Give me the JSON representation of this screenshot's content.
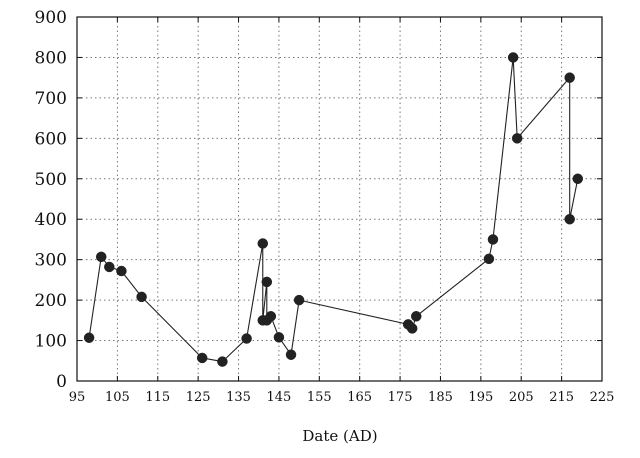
{
  "chart_data": {
    "type": "line",
    "title": "",
    "xlabel": "Date (AD)",
    "ylabel": "",
    "xlim": [
      95,
      225
    ],
    "ylim": [
      0,
      900
    ],
    "x_ticks": [
      95,
      105,
      115,
      125,
      135,
      145,
      155,
      165,
      175,
      185,
      195,
      205,
      215,
      225
    ],
    "y_ticks": [
      0,
      100,
      200,
      300,
      400,
      500,
      600,
      700,
      800,
      900
    ],
    "grid": true,
    "grid_style": "dotted",
    "legend": "none",
    "colors": {
      "line": "#222222",
      "marker": "#222222",
      "grid": "#777777",
      "axis": "#111111"
    },
    "series": [
      {
        "points": [
          {
            "x": 98,
            "y": 107
          },
          {
            "x": 101,
            "y": 307
          },
          {
            "x": 103,
            "y": 282
          },
          {
            "x": 106,
            "y": 272
          },
          {
            "x": 111,
            "y": 208
          },
          {
            "x": 126,
            "y": 57
          },
          {
            "x": 131,
            "y": 48
          },
          {
            "x": 137,
            "y": 105
          },
          {
            "x": 141,
            "y": 340
          },
          {
            "x": 141,
            "y": 150
          },
          {
            "x": 142,
            "y": 245
          },
          {
            "x": 142,
            "y": 150
          },
          {
            "x": 143,
            "y": 160
          },
          {
            "x": 145,
            "y": 108
          },
          {
            "x": 148,
            "y": 65
          },
          {
            "x": 150,
            "y": 200
          },
          {
            "x": 177,
            "y": 140
          },
          {
            "x": 178,
            "y": 130
          },
          {
            "x": 179,
            "y": 160
          },
          {
            "x": 197,
            "y": 302
          },
          {
            "x": 198,
            "y": 350
          },
          {
            "x": 203,
            "y": 800
          },
          {
            "x": 204,
            "y": 600
          },
          {
            "x": 217,
            "y": 750
          },
          {
            "x": 217,
            "y": 400
          },
          {
            "x": 219,
            "y": 500
          }
        ]
      }
    ]
  }
}
